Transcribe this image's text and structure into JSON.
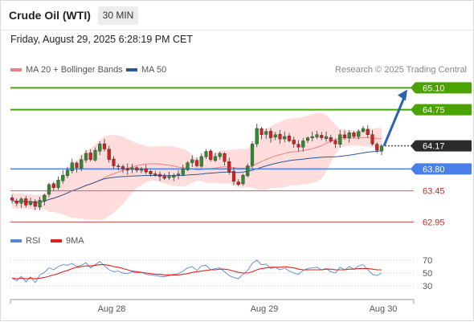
{
  "header": {
    "title": "Crude Oil (WTI)",
    "timeframe": "30 MIN",
    "datetime": "Friday, August 29, 2025 6:28:19 PM CET"
  },
  "legend": {
    "ma20_label": "MA 20 + Bollinger Bands",
    "ma50_label": "MA 50",
    "credit": "Research © 2025 Trading Central",
    "rsi_label": "RSI",
    "ma9_label": "9MA"
  },
  "colors": {
    "bull": "#2e8b2e",
    "bear": "#d81f1f",
    "boll_fill": "#ffd7d7",
    "ma20": "#f08080",
    "ma50": "#2b5797",
    "target": "#4aa300",
    "pivot": "#4a7fe8",
    "support": "#e05555",
    "arrow": "#2b62b0",
    "rsi": "#5b86d6",
    "rsi_ma": "#e02020"
  },
  "chart_data": [
    {
      "type": "candlestick",
      "x_ticks": [
        "Aug 28",
        "Aug 29",
        "Aug 30"
      ],
      "ylim": [
        62.84,
        65.26
      ],
      "grid": false,
      "current_price": 64.17,
      "levels": [
        {
          "label": "65.10",
          "value": 65.1,
          "role": "target",
          "boxed": true
        },
        {
          "label": "64.75",
          "value": 64.75,
          "role": "target",
          "boxed": true
        },
        {
          "label": "64.17",
          "value": 64.17,
          "role": "last",
          "boxed": true
        },
        {
          "label": "63.80",
          "value": 63.8,
          "role": "pivot",
          "boxed": true
        },
        {
          "label": "63.45",
          "value": 63.45,
          "role": "support",
          "boxed": false
        },
        {
          "label": "62.95",
          "value": 62.95,
          "role": "support",
          "boxed": false
        }
      ],
      "closes": [
        63.3,
        63.25,
        63.32,
        63.22,
        63.28,
        63.2,
        63.3,
        63.38,
        63.55,
        63.5,
        63.62,
        63.7,
        63.78,
        63.9,
        63.82,
        63.95,
        64.05,
        63.95,
        64.1,
        64.2,
        64.12,
        63.95,
        63.85,
        63.85,
        63.8,
        63.78,
        63.82,
        63.78,
        63.8,
        63.75,
        63.72,
        63.7,
        63.68,
        63.65,
        63.68,
        63.7,
        63.72,
        63.8,
        63.9,
        63.95,
        63.85,
        64.0,
        64.08,
        63.95,
        64.0,
        64.05,
        63.92,
        63.75,
        63.6,
        63.55,
        63.7,
        63.85,
        64.2,
        64.45,
        64.35,
        64.4,
        64.3,
        64.35,
        64.28,
        64.32,
        64.25,
        64.2,
        64.15,
        64.25,
        64.3,
        64.32,
        64.35,
        64.3,
        64.32,
        64.25,
        64.2,
        64.35,
        64.3,
        64.38,
        64.32,
        64.4,
        64.45,
        64.35,
        64.2,
        64.1,
        64.17
      ],
      "rsi": {
        "label": "RSI",
        "ticks": [
          70,
          50,
          30
        ],
        "ylim": [
          20,
          80
        ],
        "values": [
          42,
          38,
          45,
          36,
          44,
          35,
          47,
          51,
          58,
          55,
          60,
          63,
          62,
          65,
          60,
          62,
          66,
          58,
          63,
          68,
          61,
          55,
          52,
          53,
          50,
          49,
          52,
          50,
          51,
          48,
          47,
          46,
          45,
          44,
          46,
          48,
          49,
          53,
          58,
          60,
          54,
          61,
          62,
          55,
          57,
          58,
          52,
          46,
          43,
          41,
          48,
          54,
          65,
          70,
          63,
          64,
          57,
          59,
          55,
          58,
          53,
          50,
          48,
          54,
          57,
          58,
          59,
          55,
          57,
          52,
          50,
          59,
          55,
          60,
          56,
          61,
          63,
          55,
          48,
          46,
          50
        ],
        "ma9": [
          42,
          41,
          42,
          41,
          42,
          41,
          42,
          43,
          45,
          47,
          49,
          52,
          54,
          57,
          59,
          60,
          61,
          61,
          62,
          63,
          63,
          62,
          60,
          59,
          57,
          55,
          53,
          52,
          51,
          50,
          49,
          48,
          48,
          47,
          47,
          47,
          47,
          48,
          49,
          51,
          52,
          53,
          54,
          55,
          55,
          56,
          56,
          55,
          53,
          51,
          50,
          50,
          52,
          55,
          57,
          58,
          59,
          59,
          59,
          60,
          59,
          58,
          56,
          55,
          55,
          55,
          55,
          55,
          56,
          56,
          55,
          55,
          55,
          56,
          56,
          57,
          57,
          57,
          56,
          55,
          55
        ]
      }
    }
  ]
}
